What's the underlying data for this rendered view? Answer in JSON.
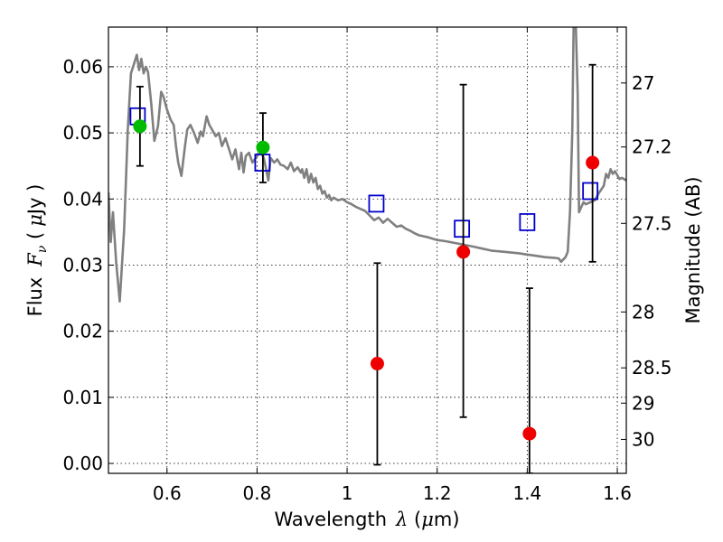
{
  "chart_data": {
    "type": "scatter",
    "xlabel": "Wavelength",
    "xlabel_symbol": "λ",
    "xlabel_unit_open": " (",
    "xlabel_unit_mu": "μ",
    "xlabel_unit_rest": "m)",
    "ylabel": "Flux",
    "ylabel_symbol_F": "F",
    "ylabel_symbol_sub": "ν",
    "ylabel_unit_open": "  (",
    "ylabel_unit_mu": "μ",
    "ylabel_unit_rest": "Jy )",
    "y2label": "Magnitude (AB)",
    "xlim": [
      0.47,
      1.62
    ],
    "ylim": [
      -0.0015,
      0.066
    ],
    "grid": true,
    "x_ticks": [
      {
        "value": 0.6,
        "label": "0.6"
      },
      {
        "value": 0.8,
        "label": "0.8"
      },
      {
        "value": 1.0,
        "label": "1"
      },
      {
        "value": 1.2,
        "label": "1.2"
      },
      {
        "value": 1.4,
        "label": "1.4"
      },
      {
        "value": 1.6,
        "label": "1.6"
      }
    ],
    "y_ticks": [
      {
        "value": 0.0,
        "label": "0.00"
      },
      {
        "value": 0.01,
        "label": "0.01"
      },
      {
        "value": 0.02,
        "label": "0.02"
      },
      {
        "value": 0.03,
        "label": "0.03"
      },
      {
        "value": 0.04,
        "label": "0.04"
      },
      {
        "value": 0.05,
        "label": "0.05"
      },
      {
        "value": 0.06,
        "label": "0.06"
      }
    ],
    "y2_ticks": [
      {
        "value": 27.0,
        "label": "27"
      },
      {
        "value": 27.2,
        "label": "27.2"
      },
      {
        "value": 27.5,
        "label": "27.5"
      },
      {
        "value": 28.0,
        "label": "28"
      },
      {
        "value": 28.5,
        "label": "28.5"
      },
      {
        "value": 29.0,
        "label": "29"
      },
      {
        "value": 30.0,
        "label": "30"
      }
    ],
    "series": [
      {
        "kind": "line",
        "color": "#808080",
        "points": [
          [
            0.47,
            0.041
          ],
          [
            0.475,
            0.0335
          ],
          [
            0.48,
            0.038
          ],
          [
            0.487,
            0.0305
          ],
          [
            0.495,
            0.0245
          ],
          [
            0.505,
            0.0355
          ],
          [
            0.513,
            0.0505
          ],
          [
            0.52,
            0.059
          ],
          [
            0.527,
            0.0605
          ],
          [
            0.533,
            0.0618
          ],
          [
            0.538,
            0.0595
          ],
          [
            0.543,
            0.0612
          ],
          [
            0.548,
            0.059
          ],
          [
            0.553,
            0.06
          ],
          [
            0.558,
            0.0592
          ],
          [
            0.565,
            0.0545
          ],
          [
            0.572,
            0.0488
          ],
          [
            0.58,
            0.051
          ],
          [
            0.587,
            0.0562
          ],
          [
            0.592,
            0.0555
          ],
          [
            0.6,
            0.0535
          ],
          [
            0.608,
            0.052
          ],
          [
            0.615,
            0.0512
          ],
          [
            0.62,
            0.048
          ],
          [
            0.625,
            0.0455
          ],
          [
            0.632,
            0.0435
          ],
          [
            0.64,
            0.048
          ],
          [
            0.645,
            0.0505
          ],
          [
            0.652,
            0.0512
          ],
          [
            0.66,
            0.05
          ],
          [
            0.668,
            0.0485
          ],
          [
            0.675,
            0.0502
          ],
          [
            0.68,
            0.0495
          ],
          [
            0.688,
            0.0525
          ],
          [
            0.694,
            0.0512
          ],
          [
            0.7,
            0.0505
          ],
          [
            0.708,
            0.0495
          ],
          [
            0.715,
            0.05
          ],
          [
            0.722,
            0.048
          ],
          [
            0.73,
            0.0492
          ],
          [
            0.738,
            0.0475
          ],
          [
            0.745,
            0.046
          ],
          [
            0.752,
            0.0475
          ],
          [
            0.76,
            0.0445
          ],
          [
            0.765,
            0.047
          ],
          [
            0.77,
            0.044
          ],
          [
            0.775,
            0.0465
          ],
          [
            0.782,
            0.047
          ],
          [
            0.79,
            0.0455
          ],
          [
            0.8,
            0.0465
          ],
          [
            0.808,
            0.0472
          ],
          [
            0.815,
            0.0462
          ],
          [
            0.82,
            0.0445
          ],
          [
            0.825,
            0.0428
          ],
          [
            0.83,
            0.0462
          ],
          [
            0.838,
            0.0455
          ],
          [
            0.845,
            0.046
          ],
          [
            0.852,
            0.0452
          ],
          [
            0.86,
            0.045
          ],
          [
            0.868,
            0.0445
          ],
          [
            0.875,
            0.0455
          ],
          [
            0.882,
            0.0442
          ],
          [
            0.89,
            0.0448
          ],
          [
            0.897,
            0.044
          ],
          [
            0.9,
            0.0445
          ],
          [
            0.905,
            0.0432
          ],
          [
            0.91,
            0.0445
          ],
          [
            0.915,
            0.0425
          ],
          [
            0.92,
            0.0438
          ],
          [
            0.925,
            0.0425
          ],
          [
            0.93,
            0.0432
          ],
          [
            0.935,
            0.0415
          ],
          [
            0.94,
            0.042
          ],
          [
            0.945,
            0.0408
          ],
          [
            0.95,
            0.0412
          ],
          [
            0.955,
            0.0402
          ],
          [
            0.96,
            0.0406
          ],
          [
            0.965,
            0.0398
          ],
          [
            0.97,
            0.0402
          ],
          [
            0.98,
            0.0398
          ],
          [
            0.99,
            0.04
          ],
          [
            1.0,
            0.0395
          ],
          [
            1.01,
            0.0392
          ],
          [
            1.02,
            0.0388
          ],
          [
            1.03,
            0.0385
          ],
          [
            1.04,
            0.0382
          ],
          [
            1.05,
            0.0375
          ],
          [
            1.06,
            0.0368
          ],
          [
            1.07,
            0.0372
          ],
          [
            1.08,
            0.0364
          ],
          [
            1.09,
            0.037
          ],
          [
            1.1,
            0.0364
          ],
          [
            1.11,
            0.0358
          ],
          [
            1.12,
            0.036
          ],
          [
            1.13,
            0.0355
          ],
          [
            1.14,
            0.0352
          ],
          [
            1.15,
            0.0348
          ],
          [
            1.16,
            0.0345
          ],
          [
            1.18,
            0.0342
          ],
          [
            1.2,
            0.0338
          ],
          [
            1.22,
            0.0336
          ],
          [
            1.25,
            0.0332
          ],
          [
            1.28,
            0.0328
          ],
          [
            1.3,
            0.0325
          ],
          [
            1.32,
            0.0322
          ],
          [
            1.35,
            0.032
          ],
          [
            1.38,
            0.0318
          ],
          [
            1.4,
            0.0316
          ],
          [
            1.42,
            0.0314
          ],
          [
            1.44,
            0.0312
          ],
          [
            1.46,
            0.0311
          ],
          [
            1.47,
            0.031
          ],
          [
            1.475,
            0.0305
          ],
          [
            1.485,
            0.0312
          ],
          [
            1.49,
            0.032
          ],
          [
            1.495,
            0.038
          ],
          [
            1.5,
            0.05
          ],
          [
            1.503,
            0.066
          ],
          [
            1.508,
            0.066
          ],
          [
            1.512,
            0.056
          ],
          [
            1.515,
            0.038
          ],
          [
            1.52,
            0.0388
          ],
          [
            1.525,
            0.0395
          ],
          [
            1.53,
            0.0392
          ],
          [
            1.54,
            0.0395
          ],
          [
            1.55,
            0.0398
          ],
          [
            1.56,
            0.041
          ],
          [
            1.57,
            0.042
          ],
          [
            1.575,
            0.0438
          ],
          [
            1.58,
            0.0432
          ],
          [
            1.585,
            0.0445
          ],
          [
            1.59,
            0.0438
          ],
          [
            1.595,
            0.0442
          ],
          [
            1.6,
            0.0436
          ],
          [
            1.605,
            0.043
          ],
          [
            1.61,
            0.0432
          ],
          [
            1.615,
            0.043
          ],
          [
            1.62,
            0.0428
          ]
        ]
      },
      {
        "kind": "scatter",
        "marker": "open-square",
        "color": "#0000cc",
        "x": [
          0.535,
          0.812,
          1.065,
          1.255,
          1.4,
          1.54
        ],
        "y": [
          0.0525,
          0.0455,
          0.0393,
          0.0355,
          0.0365,
          0.0412
        ]
      },
      {
        "kind": "scatter",
        "marker": "filled-circle",
        "color": "#00bb00",
        "x": [
          0.54,
          0.813
        ],
        "y": [
          0.051,
          0.0478
        ],
        "err_low": [
          0.045,
          0.0425
        ],
        "err_high": [
          0.057,
          0.053
        ]
      },
      {
        "kind": "scatter",
        "marker": "filled-circle",
        "color": "#ee0000",
        "x": [
          1.067,
          1.258,
          1.405,
          1.545
        ],
        "y": [
          0.0151,
          0.032,
          0.0045,
          0.0455
        ],
        "err_low": [
          -0.0002,
          0.007,
          -0.0015,
          0.0305
        ],
        "err_high": [
          0.0303,
          0.0573,
          0.0265,
          0.0603
        ]
      }
    ]
  }
}
